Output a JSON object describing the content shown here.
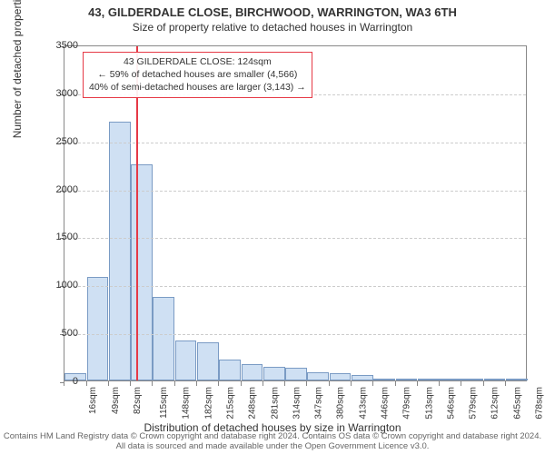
{
  "title": "43, GILDERDALE CLOSE, BIRCHWOOD, WARRINGTON, WA3 6TH",
  "subtitle": "Size of property relative to detached houses in Warrington",
  "y_axis_label": "Number of detached properties",
  "x_axis_label": "Distribution of detached houses by size in Warrington",
  "credits": "Contains HM Land Registry data © Crown copyright and database right 2024. Contains OS data © Crown copyright and database right 2024. All data is sourced and made available under the Open Government Licence v3.0.",
  "annotation": {
    "line1": "43 GILDERDALE CLOSE: 124sqm",
    "line2": "← 59% of detached houses are smaller (4,566)",
    "line3": "40% of semi-detached houses are larger (3,143) →"
  },
  "chart": {
    "type": "bar",
    "background_color": "#ffffff",
    "bar_fill": "#cfe0f3",
    "bar_stroke": "#7a9bc4",
    "grid_color": "#cccccc",
    "axis_color": "#888888",
    "marker_color": "#e63946",
    "ylim": [
      0,
      3500
    ],
    "ytick_step": 500,
    "yticks": [
      0,
      500,
      1000,
      1500,
      2000,
      2500,
      3000,
      3500
    ],
    "x_categories": [
      "16sqm",
      "49sqm",
      "82sqm",
      "115sqm",
      "148sqm",
      "182sqm",
      "215sqm",
      "248sqm",
      "281sqm",
      "314sqm",
      "347sqm",
      "380sqm",
      "413sqm",
      "446sqm",
      "479sqm",
      "513sqm",
      "546sqm",
      "579sqm",
      "612sqm",
      "645sqm",
      "678sqm"
    ],
    "values": [
      80,
      1080,
      2700,
      2250,
      870,
      420,
      400,
      220,
      170,
      140,
      130,
      90,
      80,
      60,
      20,
      18,
      15,
      12,
      10,
      8,
      6
    ],
    "marker_x_value": 124,
    "x_min": 16,
    "x_bin_width": 33,
    "title_fontsize": 13,
    "label_fontsize": 12,
    "tick_fontsize": 11
  }
}
